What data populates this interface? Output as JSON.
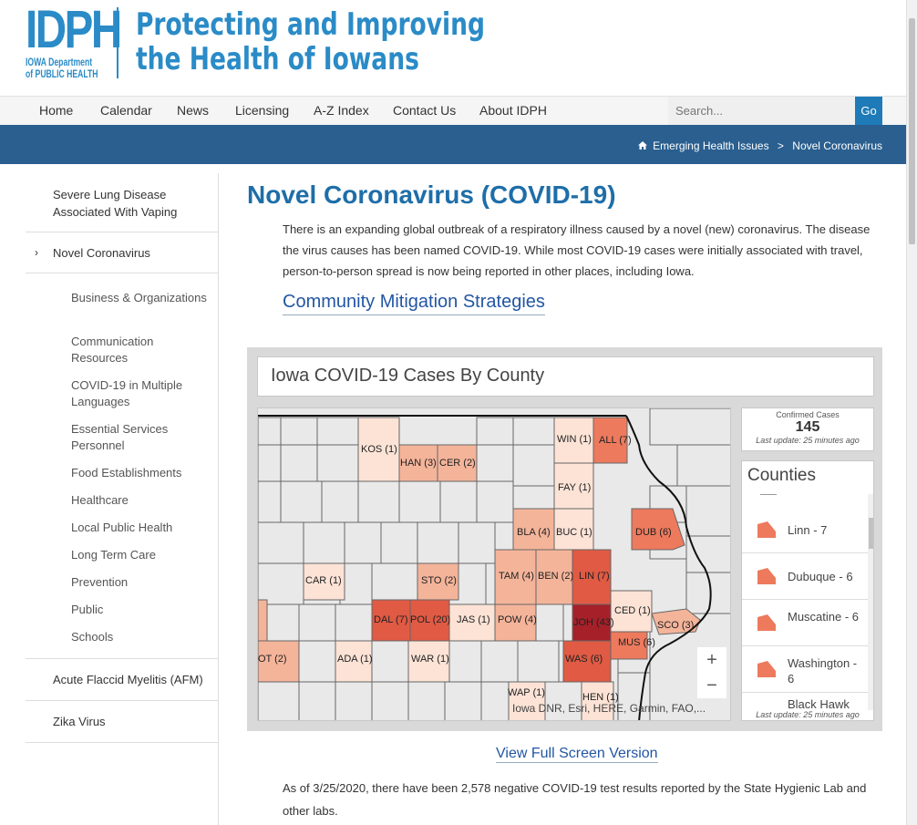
{
  "header": {
    "logo_letters": "IDPH",
    "logo_line1": "IOWA Department",
    "logo_line2": "of PUBLIC HEALTH",
    "tagline_line1": "Protecting and Improving",
    "tagline_line2": "the Health of Iowans",
    "brand_color": "#2a8bc7"
  },
  "nav": {
    "items": [
      "Home",
      "Calendar",
      "News",
      "Licensing",
      "A-Z Index",
      "Contact Us",
      "About IDPH"
    ],
    "search_placeholder": "Search...",
    "search_button": "Go"
  },
  "breadcrumb": {
    "items": [
      "Emerging Health Issues",
      "Novel Coronavirus"
    ],
    "separator": ">",
    "bar_color": "#2a5f8f"
  },
  "sidebar": {
    "top_items": [
      "Severe Lung Disease Associated With Vaping",
      "Novel Coronavirus",
      "Acute Flaccid Myelitis (AFM)",
      "Zika Virus"
    ],
    "sub_items": [
      "Business & Organizations",
      "Communication Resources",
      "COVID-19 in Multiple Languages",
      "Essential Services Personnel",
      "Food Establishments",
      "Healthcare",
      "Local Public Health",
      "Long Term Care",
      "Prevention",
      "Public",
      "Schools"
    ]
  },
  "main": {
    "title": "Novel Coronavirus (COVID-19)",
    "intro": "There is an expanding global outbreak of a respiratory illness caused by a novel (new) coronavirus. The disease the virus causes has been named COVID-19. While most COVID-19 cases were initially associated with travel, person-to-person spread is now being reported in other places, including Iowa.",
    "mitigation_link": "Community Mitigation Strategies",
    "fullscreen_link": "View Full Screen Version",
    "negative_results": "As of 3/25/2020, there have been 2,578 negative COVID-19 test results reported by the State Hygienic Lab and other labs."
  },
  "dashboard": {
    "title": "Iowa COVID-19 Cases By County",
    "confirmed_label": "Confirmed Cases",
    "confirmed_value": "145",
    "last_update": "Last update: 25 minutes ago",
    "counties_title": "Counties",
    "counties_list": [
      "Linn - 7",
      "Dubuque - 6",
      "Muscatine - 6",
      "Washington - 6",
      "Black Hawk"
    ],
    "map_labels": [
      "KOS (1)",
      "HAN (3)",
      "CER (2)",
      "WIN (1)",
      "ALL (7)",
      "FAY (1)",
      "BLA (4)",
      "BUC (1)",
      "DUB (6)",
      "CAR (1)",
      "STO (2)",
      "TAM (4)",
      "BEN (2)",
      "LIN (7)",
      "DAL (7)",
      "POL (20)",
      "JAS (1)",
      "POW (4)",
      "JOH (43)",
      "CED (1)",
      "SCO (3)",
      "MUS (6)",
      "ADA (1)",
      "WAR (1)",
      "WAS (6)",
      "WAP (1)",
      "HEN (1)",
      "OT (2)"
    ],
    "zoom_in": "+",
    "zoom_out": "−",
    "attribution": "Iowa DNR, Esri, HERE, Garmin, FAO,...",
    "colors": {
      "level1": "#fce3d6",
      "level2": "#f4b49a",
      "level3": "#ed7a5d",
      "level4": "#e05a44",
      "level5": "#a6202a",
      "base": "#e9e9e9"
    }
  }
}
